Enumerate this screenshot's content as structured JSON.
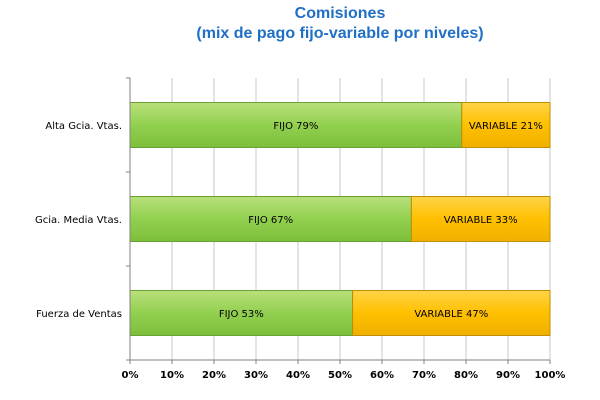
{
  "chart_data": {
    "type": "bar",
    "orientation": "horizontal",
    "stacked": true,
    "title": "Comisiones",
    "subtitle": "(mix de pago fijo-variable por niveles)",
    "categories": [
      "Alta Gcia. Vtas.",
      "Gcia. Media Vtas.",
      "Fuerza de Ventas"
    ],
    "series": [
      {
        "segment_prefix": "FIJO",
        "values": [
          79,
          67,
          53
        ],
        "labels": [
          "FIJO 79%",
          "FIJO 67%",
          "FIJO 53%"
        ],
        "color": "#92d050"
      },
      {
        "segment_prefix": "VARIABLE",
        "values": [
          21,
          33,
          47
        ],
        "labels": [
          "VARIABLE 21%",
          "VARIABLE 33%",
          "VARIABLE 47%"
        ],
        "color": "#ffc000"
      }
    ],
    "xlim": [
      0,
      100
    ],
    "x_ticks": [
      "0%",
      "10%",
      "20%",
      "30%",
      "40%",
      "50%",
      "60%",
      "70%",
      "80%",
      "90%",
      "100%"
    ],
    "grid": true,
    "legend": "none"
  }
}
